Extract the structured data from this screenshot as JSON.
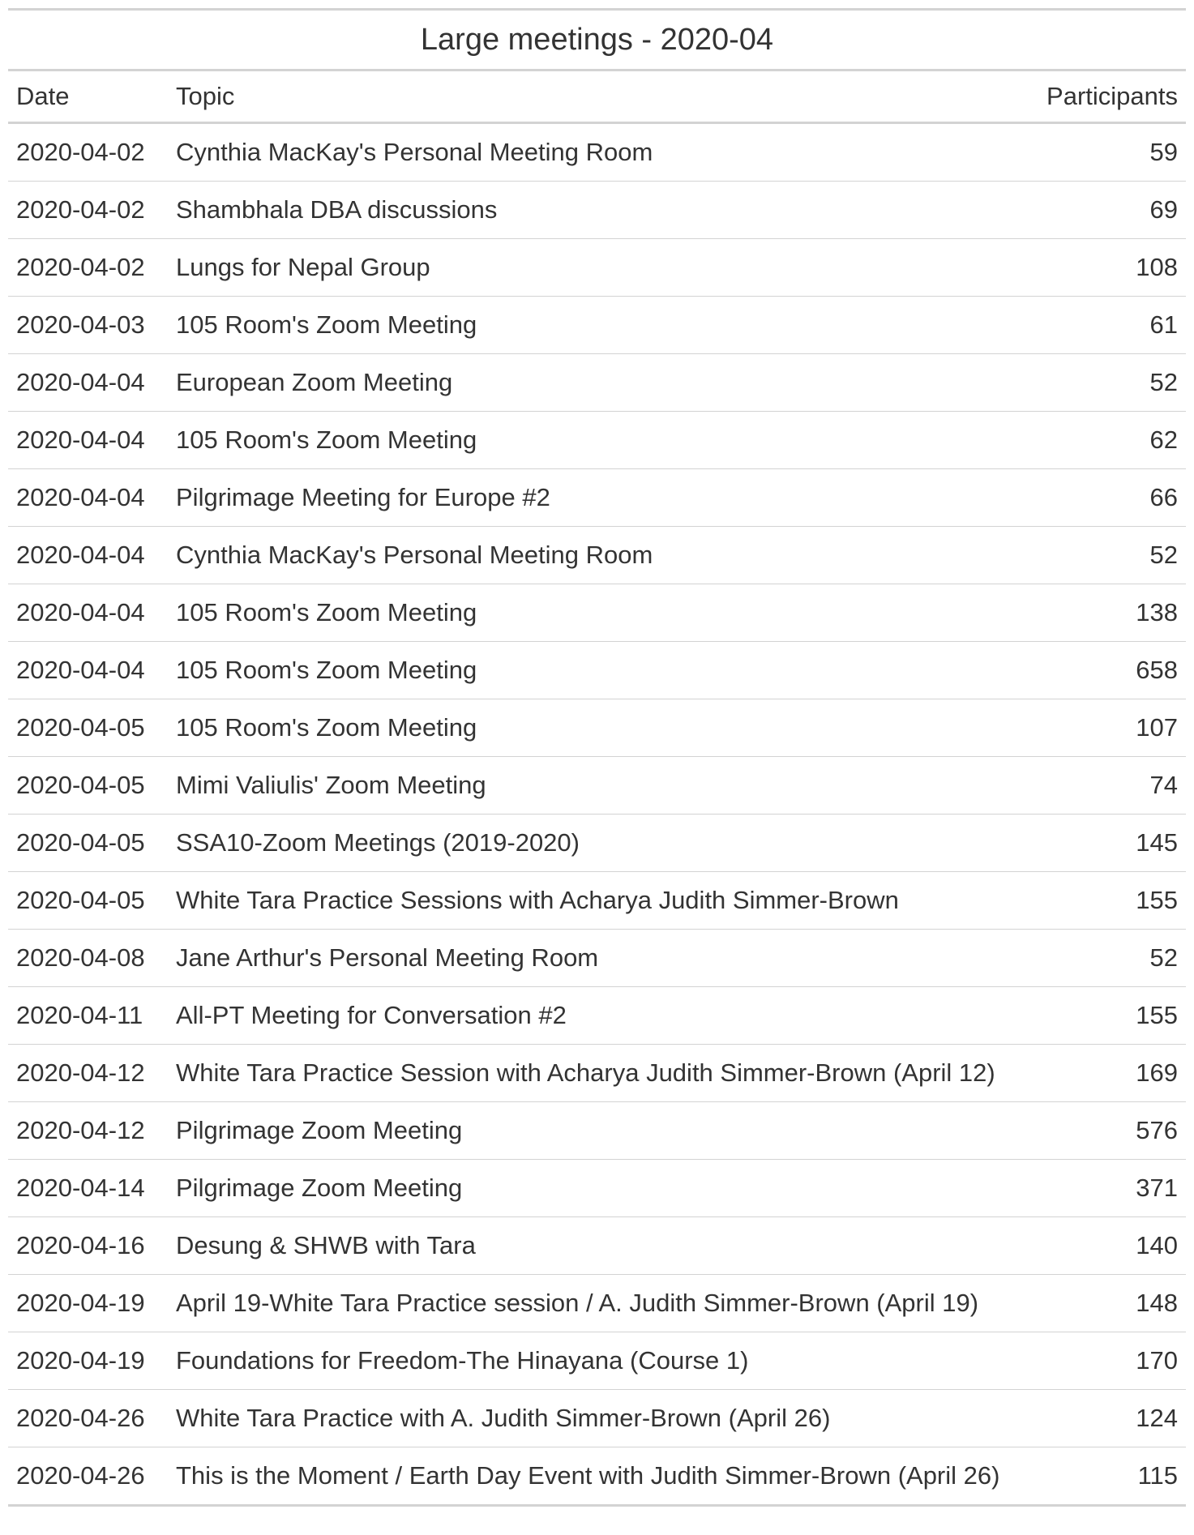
{
  "title": "Large meetings - 2020-04",
  "columns": {
    "date": "Date",
    "topic": "Topic",
    "participants": "Participants"
  },
  "rows": [
    {
      "date": "2020-04-02",
      "topic": "Cynthia MacKay's Personal Meeting Room",
      "participants": "59"
    },
    {
      "date": "2020-04-02",
      "topic": "Shambhala DBA discussions",
      "participants": "69"
    },
    {
      "date": "2020-04-02",
      "topic": "Lungs for Nepal Group",
      "participants": "108"
    },
    {
      "date": "2020-04-03",
      "topic": "105 Room's Zoom Meeting",
      "participants": "61"
    },
    {
      "date": "2020-04-04",
      "topic": "European Zoom Meeting",
      "participants": "52"
    },
    {
      "date": "2020-04-04",
      "topic": "105 Room's Zoom Meeting",
      "participants": "62"
    },
    {
      "date": "2020-04-04",
      "topic": "Pilgrimage Meeting for Europe #2",
      "participants": "66"
    },
    {
      "date": "2020-04-04",
      "topic": "Cynthia MacKay's Personal Meeting Room",
      "participants": "52"
    },
    {
      "date": "2020-04-04",
      "topic": "105 Room's Zoom Meeting",
      "participants": "138"
    },
    {
      "date": "2020-04-04",
      "topic": "105 Room's Zoom Meeting",
      "participants": "658"
    },
    {
      "date": "2020-04-05",
      "topic": "105 Room's Zoom Meeting",
      "participants": "107"
    },
    {
      "date": "2020-04-05",
      "topic": "Mimi Valiulis' Zoom Meeting",
      "participants": "74"
    },
    {
      "date": "2020-04-05",
      "topic": "SSA10-Zoom Meetings (2019-2020)",
      "participants": "145"
    },
    {
      "date": "2020-04-05",
      "topic": "White Tara Practice Sessions with Acharya Judith Simmer-Brown",
      "participants": "155"
    },
    {
      "date": "2020-04-08",
      "topic": "Jane Arthur's Personal Meeting Room",
      "participants": "52"
    },
    {
      "date": "2020-04-11",
      "topic": "All-PT Meeting for Conversation #2",
      "participants": "155"
    },
    {
      "date": "2020-04-12",
      "topic": "White Tara Practice Session with Acharya Judith Simmer-Brown (April 12)",
      "participants": "169"
    },
    {
      "date": "2020-04-12",
      "topic": "Pilgrimage Zoom Meeting",
      "participants": "576"
    },
    {
      "date": "2020-04-14",
      "topic": "Pilgrimage Zoom Meeting",
      "participants": "371"
    },
    {
      "date": "2020-04-16",
      "topic": "Desung & SHWB with Tara",
      "participants": "140"
    },
    {
      "date": "2020-04-19",
      "topic": "April 19-White Tara Practice session / A. Judith Simmer-Brown (April 19)",
      "participants": "148"
    },
    {
      "date": "2020-04-19",
      "topic": "Foundations for Freedom-The Hinayana (Course 1)",
      "participants": "170"
    },
    {
      "date": "2020-04-26",
      "topic": "White Tara Practice with A. Judith Simmer-Brown (April 26)",
      "participants": "124"
    },
    {
      "date": "2020-04-26",
      "topic": "This is the Moment / Earth Day Event with Judith Simmer-Brown (April 26)",
      "participants": "115"
    }
  ]
}
